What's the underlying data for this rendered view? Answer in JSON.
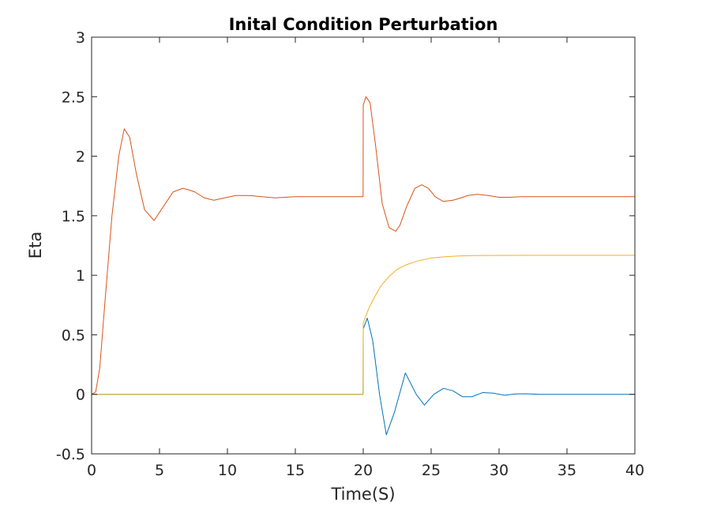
{
  "chart_data": {
    "type": "line",
    "title": "Inital Condition Perturbation",
    "xlabel": "Time(S)",
    "ylabel": "Eta",
    "xlim": [
      0,
      40
    ],
    "ylim": [
      -0.5,
      3
    ],
    "x_ticks": [
      0,
      5,
      10,
      15,
      20,
      25,
      30,
      35,
      40
    ],
    "y_ticks": [
      -0.5,
      0,
      0.5,
      1,
      1.5,
      2,
      2.5,
      3
    ],
    "x_tick_labels": [
      "0",
      "5",
      "10",
      "15",
      "20",
      "25",
      "30",
      "35",
      "40"
    ],
    "y_tick_labels": [
      "-0.5",
      "0",
      "0.5",
      "1",
      "1.5",
      "2",
      "2.5",
      "3"
    ],
    "grid": false,
    "box": true,
    "series": [
      {
        "color": "#0072BD",
        "x": [
          0,
          19.99,
          20.0,
          20.3,
          20.7,
          21.2,
          21.7,
          22.3,
          23.1,
          23.9,
          24.5,
          25.2,
          25.9,
          26.6,
          27.3,
          28.0,
          28.8,
          29.6,
          30.4,
          31.2,
          32.0,
          33.0,
          34.0,
          36.0,
          40.0
        ],
        "y": [
          0,
          0,
          0.55,
          0.64,
          0.45,
          0.0,
          -0.34,
          -0.15,
          0.18,
          0.0,
          -0.09,
          0.0,
          0.05,
          0.03,
          -0.02,
          -0.02,
          0.015,
          0.01,
          -0.008,
          0.003,
          0.005,
          0.0,
          0.0,
          0.0,
          0.0
        ]
      },
      {
        "color": "#D95319",
        "x": [
          0,
          0.3,
          0.6,
          1.0,
          1.5,
          2.0,
          2.4,
          2.8,
          3.3,
          3.9,
          4.6,
          5.3,
          6.0,
          6.7,
          7.1,
          7.6,
          8.3,
          9.0,
          9.8,
          10.6,
          11.6,
          12.5,
          13.5,
          15.0,
          17.0,
          19.99,
          20.0,
          20.2,
          20.5,
          20.9,
          21.4,
          21.9,
          22.4,
          22.7,
          23.2,
          23.8,
          24.3,
          24.8,
          25.3,
          25.9,
          26.6,
          27.2,
          27.7,
          28.4,
          29.2,
          30.0,
          30.8,
          31.6,
          32.5,
          34.0,
          36.0,
          40.0
        ],
        "y": [
          0,
          0.02,
          0.22,
          0.8,
          1.5,
          2.0,
          2.23,
          2.16,
          1.85,
          1.55,
          1.46,
          1.58,
          1.7,
          1.73,
          1.72,
          1.7,
          1.65,
          1.63,
          1.65,
          1.67,
          1.67,
          1.66,
          1.65,
          1.66,
          1.66,
          1.66,
          2.43,
          2.5,
          2.45,
          2.1,
          1.6,
          1.4,
          1.37,
          1.42,
          1.58,
          1.73,
          1.76,
          1.73,
          1.66,
          1.62,
          1.63,
          1.65,
          1.67,
          1.68,
          1.67,
          1.655,
          1.655,
          1.66,
          1.66,
          1.66,
          1.66,
          1.66
        ]
      },
      {
        "color": "#EDB120",
        "x": [
          0,
          19.99,
          20.0,
          20.4,
          20.8,
          21.3,
          21.9,
          22.5,
          23.2,
          24.0,
          25.0,
          26.0,
          27.0,
          28.0,
          30.0,
          33.0,
          36.0,
          40.0
        ],
        "y": [
          0,
          0,
          0.6,
          0.72,
          0.81,
          0.91,
          0.99,
          1.05,
          1.09,
          1.12,
          1.145,
          1.155,
          1.162,
          1.165,
          1.167,
          1.168,
          1.168,
          1.168
        ]
      }
    ]
  }
}
